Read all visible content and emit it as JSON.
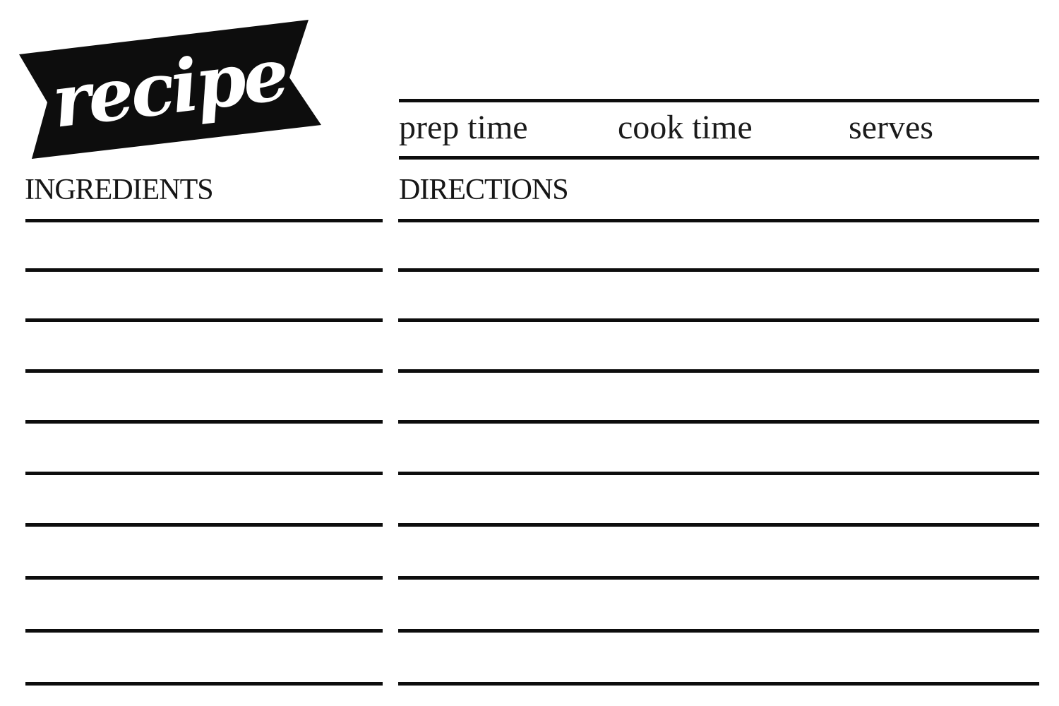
{
  "banner": {
    "label": "recipe"
  },
  "meta": {
    "prep_time_label": "prep time",
    "cook_time_label": "cook time",
    "serves_label": "serves"
  },
  "columns": {
    "ingredients": {
      "heading": "INGREDIENTS",
      "line_count": 10
    },
    "directions": {
      "heading": "DIRECTIONS",
      "line_count": 10
    }
  },
  "colors": {
    "ink": "#0d0d0d",
    "banner_fill": "#0d0d0d",
    "banner_text": "#ffffff",
    "background": "#ffffff"
  }
}
